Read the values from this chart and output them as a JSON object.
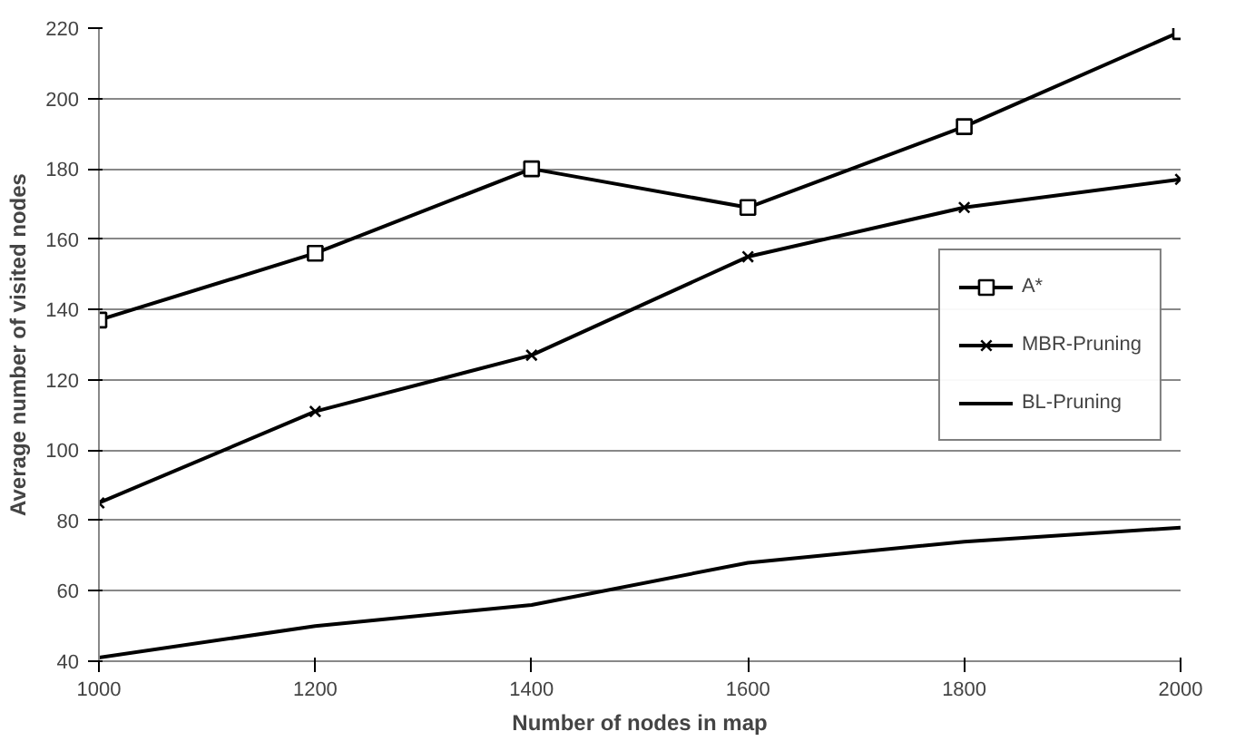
{
  "chart_data": {
    "type": "line",
    "xlabel": "Number of nodes in map",
    "ylabel": "Average number of visited nodes",
    "x": [
      1000,
      1200,
      1400,
      1600,
      1800,
      2000
    ],
    "series": [
      {
        "name": "A*",
        "color": "#000000",
        "marker": "square",
        "values": [
          137,
          156,
          180,
          169,
          192,
          219
        ]
      },
      {
        "name": "MBR-Pruning",
        "color": "#000000",
        "marker": "cross",
        "values": [
          85,
          111,
          127,
          155,
          169,
          177
        ]
      },
      {
        "name": "BL-Pruning",
        "color": "#000000",
        "marker": "none",
        "values": [
          41,
          50,
          56,
          68,
          74,
          78
        ]
      }
    ],
    "xlim": [
      1000,
      2000
    ],
    "xticks": [
      1000,
      1200,
      1400,
      1600,
      1800,
      2000
    ],
    "ylim": [
      40,
      220
    ],
    "yticks": [
      40,
      60,
      80,
      100,
      120,
      140,
      160,
      180,
      200,
      220
    ],
    "grid": "y",
    "legend": "right",
    "line_style": "solid"
  }
}
